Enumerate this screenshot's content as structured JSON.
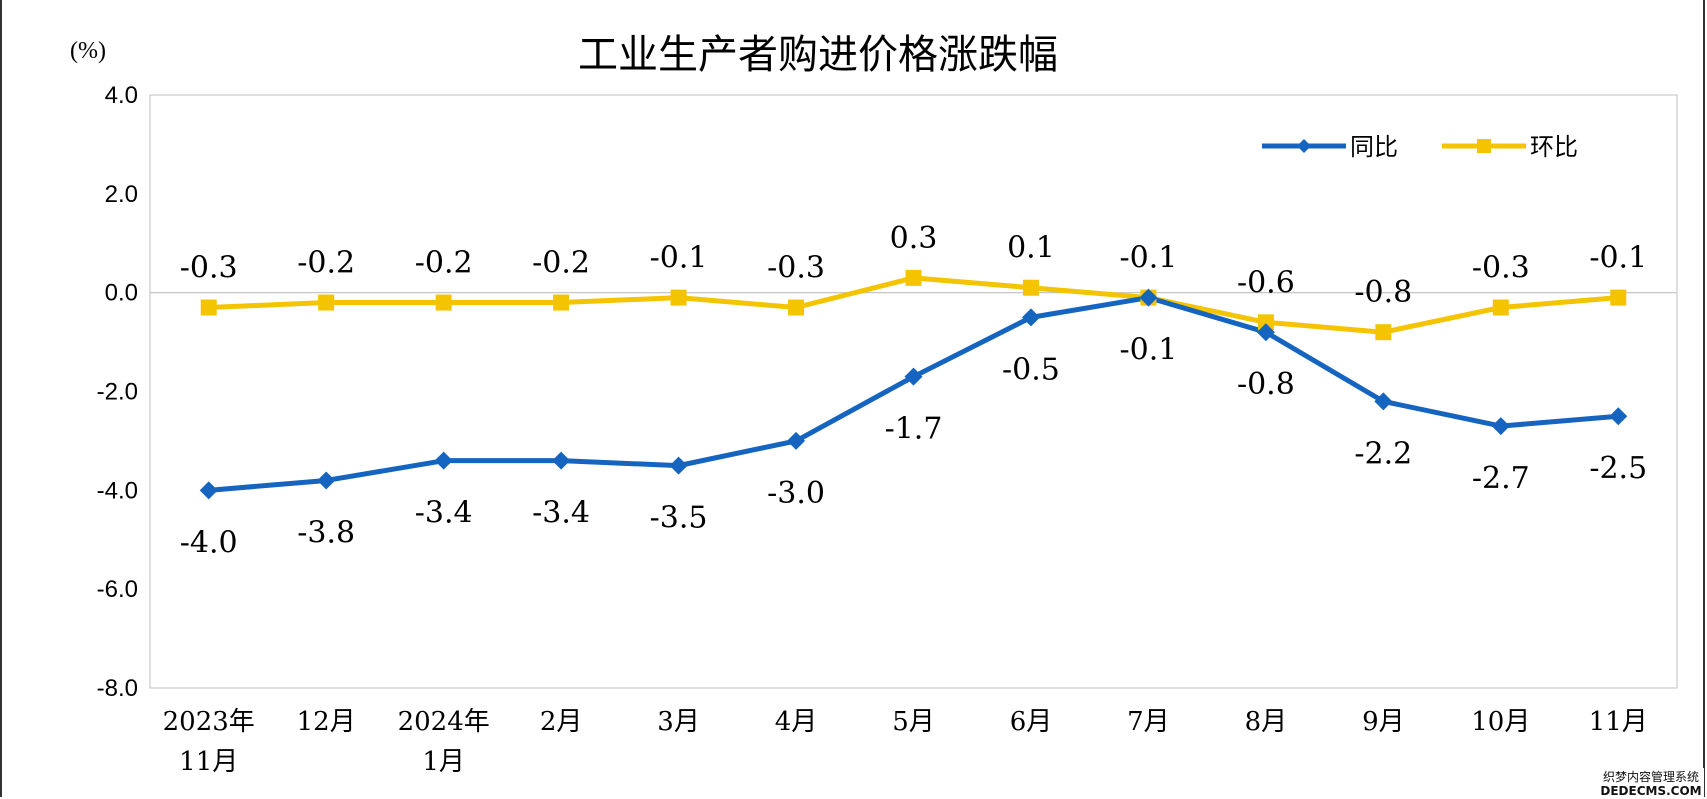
{
  "chart_data": {
    "type": "line",
    "title": "工业生产者购进价格涨跌幅",
    "unit_label": "(%)",
    "ylim": [
      -8.0,
      4.0
    ],
    "y_ticks": [
      "4.0",
      "2.0",
      "0.0",
      "-2.0",
      "-4.0",
      "-6.0",
      "-8.0"
    ],
    "categories": [
      [
        "2023年",
        "11月"
      ],
      [
        "12月"
      ],
      [
        "2024年",
        "1月"
      ],
      [
        "2月"
      ],
      [
        "3月"
      ],
      [
        "4月"
      ],
      [
        "5月"
      ],
      [
        "6月"
      ],
      [
        "7月"
      ],
      [
        "8月"
      ],
      [
        "9月"
      ],
      [
        "10月"
      ],
      [
        "11月"
      ]
    ],
    "series": [
      {
        "name": "同比",
        "color": "#1565C0",
        "marker": "diamond",
        "values": [
          -4.0,
          -3.8,
          -3.4,
          -3.4,
          -3.5,
          -3.0,
          -1.7,
          -0.5,
          -0.1,
          -0.8,
          -2.2,
          -2.7,
          -2.5
        ],
        "labels": [
          "-4.0",
          "-3.8",
          "-3.4",
          "-3.4",
          "-3.5",
          "-3.0",
          "-1.7",
          "-0.5",
          "-0.1",
          "-0.8",
          "-2.2",
          "-2.7",
          "-2.5"
        ]
      },
      {
        "name": "环比",
        "color": "#F5C400",
        "marker": "square",
        "values": [
          -0.3,
          -0.2,
          -0.2,
          -0.2,
          -0.1,
          -0.3,
          0.3,
          0.1,
          -0.1,
          -0.6,
          -0.8,
          -0.3,
          -0.1
        ],
        "labels": [
          "-0.3",
          "-0.2",
          "-0.2",
          "-0.2",
          "-0.1",
          "-0.3",
          "0.3",
          "0.1",
          "-0.1",
          "-0.6",
          "-0.8",
          "-0.3",
          "-0.1"
        ]
      }
    ],
    "legend_position": "top-right",
    "grid": false
  },
  "watermark": {
    "line1": "织梦内容管理系统",
    "line2": "DEDECMS.COM"
  }
}
